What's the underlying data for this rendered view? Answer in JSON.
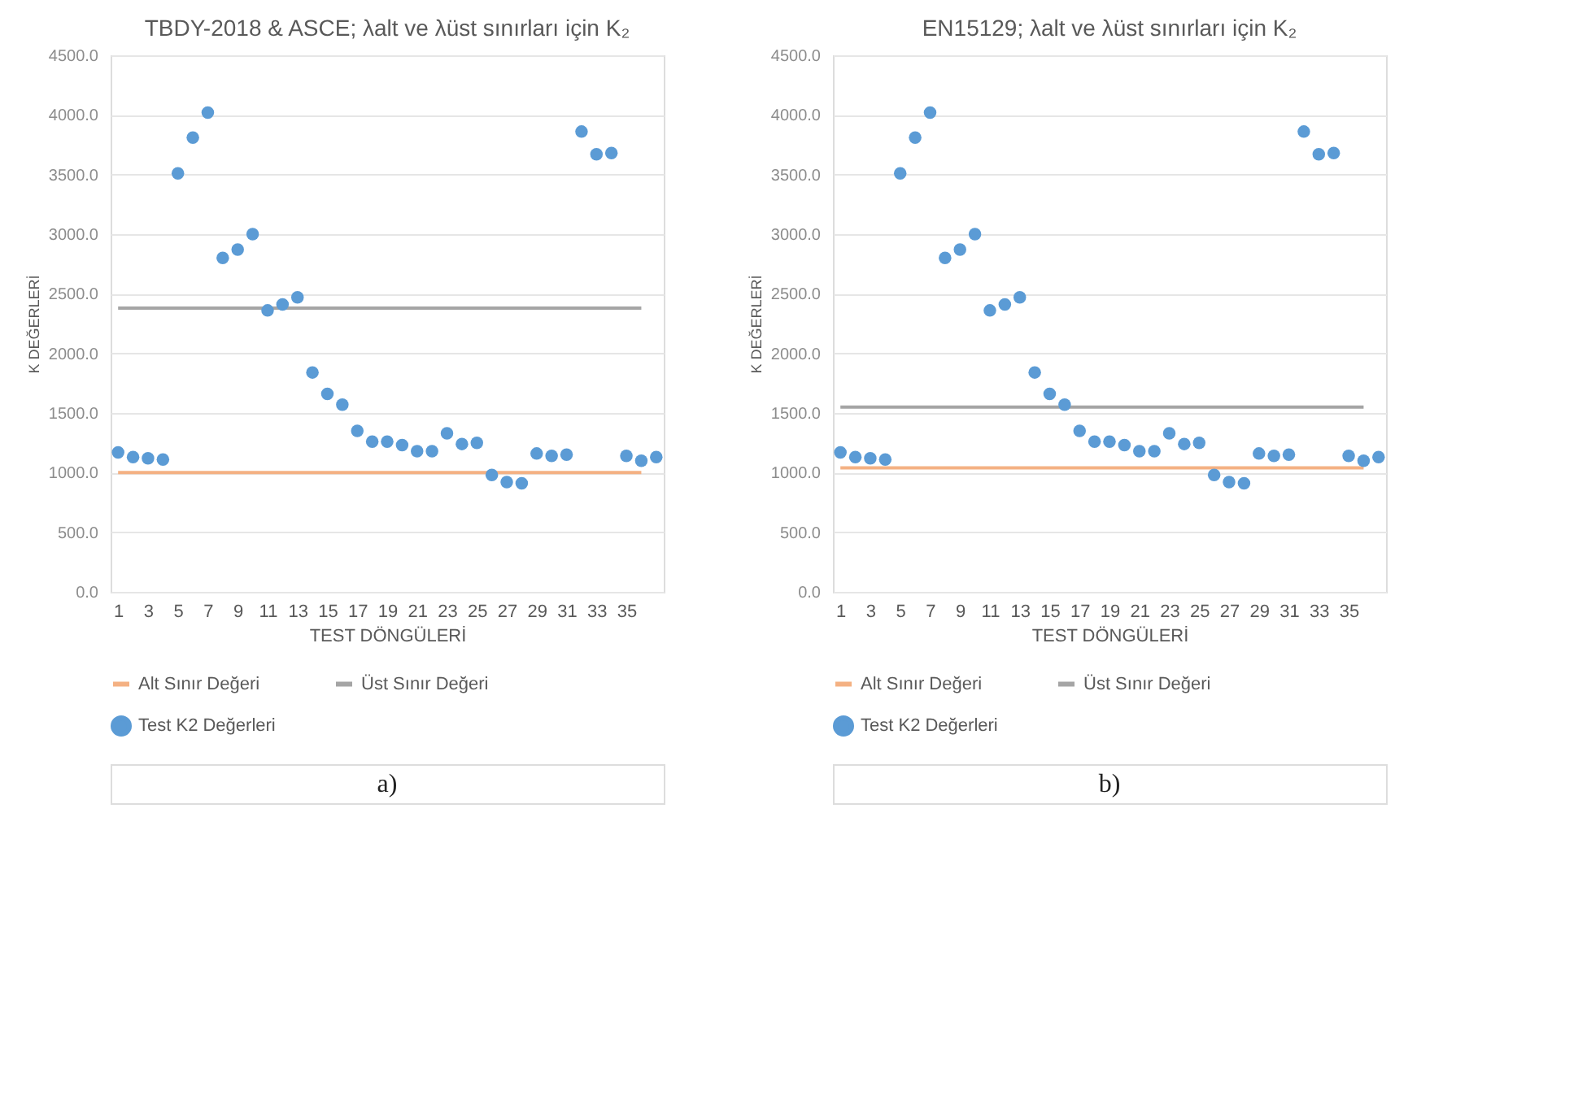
{
  "chart_data": [
    {
      "type": "scatter",
      "title": "TBDY-2018 & ASCE; λalt ve λüst sınırları için K₂",
      "xlabel": "TEST DÖNGÜLERİ",
      "ylabel": "K DEĞERLERİ",
      "x": [
        1,
        2,
        3,
        4,
        5,
        6,
        7,
        8,
        9,
        10,
        11,
        12,
        13,
        14,
        15,
        16,
        17,
        18,
        19,
        20,
        21,
        22,
        23,
        24,
        25,
        26,
        27,
        28,
        29,
        30,
        31,
        32,
        33,
        34,
        35,
        36,
        37
      ],
      "series": [
        {
          "name": "Alt Sınır Değeri",
          "type": "line",
          "marker": "none",
          "color": "#f4b183",
          "values": [
            1000,
            1000,
            1000,
            1000,
            1000,
            1000,
            1000,
            1000,
            1000,
            1000,
            1000,
            1000,
            1000,
            1000,
            1000,
            1000,
            1000,
            1000,
            1000,
            1000,
            1000,
            1000,
            1000,
            1000,
            1000,
            1000,
            1000,
            1000,
            1000,
            1000,
            1000,
            1000,
            1000,
            1000,
            1000,
            1000,
            null
          ]
        },
        {
          "name": "Üst Sınır Değeri",
          "type": "line",
          "marker": "none",
          "color": "#a5a5a5",
          "values": [
            2380,
            2380,
            2380,
            2380,
            2380,
            2380,
            2380,
            2380,
            2380,
            2380,
            2380,
            2380,
            2380,
            2380,
            2380,
            2380,
            2380,
            2380,
            2380,
            2380,
            2380,
            2380,
            2380,
            2380,
            2380,
            2380,
            2380,
            2380,
            2380,
            2380,
            2380,
            2380,
            2380,
            2380,
            2380,
            2380,
            null
          ]
        },
        {
          "name": "Test K2 Değerleri",
          "marker": "circle",
          "color": "#5b9bd5",
          "values": [
            1170,
            1130,
            1120,
            1110,
            3510,
            3810,
            4020,
            2800,
            2870,
            3000,
            2360,
            2410,
            2470,
            1840,
            1660,
            1570,
            1350,
            1260,
            1260,
            1230,
            1180,
            1180,
            1330,
            1240,
            1250,
            980,
            920,
            910,
            1160,
            1140,
            1150,
            3860,
            3670,
            3680,
            1140,
            1100,
            1130
          ]
        }
      ],
      "xlim": [
        0.5,
        37.5
      ],
      "xticks": [
        1,
        3,
        5,
        7,
        9,
        11,
        13,
        15,
        17,
        19,
        21,
        23,
        25,
        27,
        29,
        31,
        33,
        35
      ],
      "ylim": [
        0,
        4500
      ],
      "yticks": [
        {
          "value": 0,
          "label": "0.0"
        },
        {
          "value": 500,
          "label": "500.0"
        },
        {
          "value": 1000,
          "label": "1000.0"
        },
        {
          "value": 1500,
          "label": "1500.0"
        },
        {
          "value": 2000,
          "label": "2000.0"
        },
        {
          "value": 2500,
          "label": "2500.0"
        },
        {
          "value": 3000,
          "label": "3000.0"
        },
        {
          "value": 3500,
          "label": "3500.0"
        },
        {
          "value": 4000,
          "label": "4000.0"
        },
        {
          "value": 4500,
          "label": "4500.0"
        }
      ],
      "grid": "y",
      "legend": "bottom",
      "annotations": [
        "a)"
      ]
    },
    {
      "type": "scatter",
      "title": "EN15129; λalt ve λüst sınırları için K₂",
      "xlabel": "TEST DÖNGÜLERİ",
      "ylabel": "K DEĞERLERİ",
      "x": [
        1,
        2,
        3,
        4,
        5,
        6,
        7,
        8,
        9,
        10,
        11,
        12,
        13,
        14,
        15,
        16,
        17,
        18,
        19,
        20,
        21,
        22,
        23,
        24,
        25,
        26,
        27,
        28,
        29,
        30,
        31,
        32,
        33,
        34,
        35,
        36,
        37
      ],
      "series": [
        {
          "name": "Alt Sınır Değeri",
          "type": "line",
          "marker": "none",
          "color": "#f4b183",
          "values": [
            1040,
            1040,
            1040,
            1040,
            1040,
            1040,
            1040,
            1040,
            1040,
            1040,
            1040,
            1040,
            1040,
            1040,
            1040,
            1040,
            1040,
            1040,
            1040,
            1040,
            1040,
            1040,
            1040,
            1040,
            1040,
            1040,
            1040,
            1040,
            1040,
            1040,
            1040,
            1040,
            1040,
            1040,
            1040,
            1040,
            null
          ]
        },
        {
          "name": "Üst Sınır Değeri",
          "type": "line",
          "marker": "none",
          "color": "#a5a5a5",
          "values": [
            1550,
            1550,
            1550,
            1550,
            1550,
            1550,
            1550,
            1550,
            1550,
            1550,
            1550,
            1550,
            1550,
            1550,
            1550,
            1550,
            1550,
            1550,
            1550,
            1550,
            1550,
            1550,
            1550,
            1550,
            1550,
            1550,
            1550,
            1550,
            1550,
            1550,
            1550,
            1550,
            1550,
            1550,
            1550,
            1550,
            null
          ]
        },
        {
          "name": "Test K2 Değerleri",
          "marker": "circle",
          "color": "#5b9bd5",
          "values": [
            1170,
            1130,
            1120,
            1110,
            3510,
            3810,
            4020,
            2800,
            2870,
            3000,
            2360,
            2410,
            2470,
            1840,
            1660,
            1570,
            1350,
            1260,
            1260,
            1230,
            1180,
            1180,
            1330,
            1240,
            1250,
            980,
            920,
            910,
            1160,
            1140,
            1150,
            3860,
            3670,
            3680,
            1140,
            1100,
            1130
          ]
        }
      ],
      "xlim": [
        0.5,
        37.5
      ],
      "xticks": [
        1,
        3,
        5,
        7,
        9,
        11,
        13,
        15,
        17,
        19,
        21,
        23,
        25,
        27,
        29,
        31,
        33,
        35
      ],
      "ylim": [
        0,
        4500
      ],
      "yticks": [
        {
          "value": 0,
          "label": "0.0"
        },
        {
          "value": 500,
          "label": "500.0"
        },
        {
          "value": 1000,
          "label": "1000.0"
        },
        {
          "value": 1500,
          "label": "1500.0"
        },
        {
          "value": 2000,
          "label": "2000.0"
        },
        {
          "value": 2500,
          "label": "2500.0"
        },
        {
          "value": 3000,
          "label": "3000.0"
        },
        {
          "value": 3500,
          "label": "3500.0"
        },
        {
          "value": 4000,
          "label": "4000.0"
        },
        {
          "value": 4500,
          "label": "4500.0"
        }
      ],
      "grid": "y",
      "legend": "bottom",
      "annotations": [
        "b)"
      ]
    }
  ]
}
